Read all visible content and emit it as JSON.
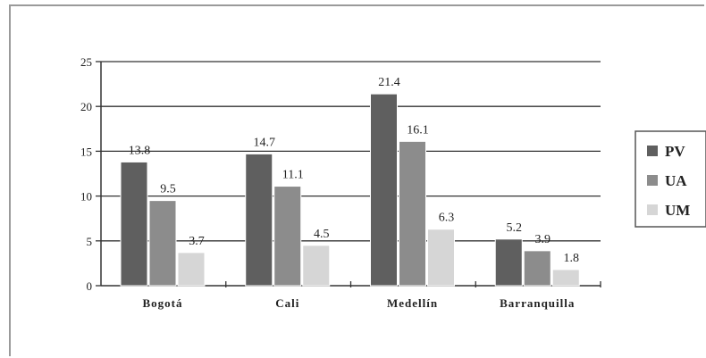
{
  "chart_data": {
    "type": "bar",
    "categories": [
      "Bogotá",
      "Cali",
      "Medellín",
      "Barranquilla"
    ],
    "series": [
      {
        "name": "PV",
        "values": [
          13.8,
          14.7,
          21.4,
          5.2
        ],
        "color": "#5f5f5f"
      },
      {
        "name": "UA",
        "values": [
          9.5,
          11.1,
          16.1,
          3.9
        ],
        "color": "#8c8c8c"
      },
      {
        "name": "UM",
        "values": [
          3.7,
          4.5,
          6.3,
          1.8
        ],
        "color": "#d6d6d6"
      }
    ],
    "y_ticks": [
      "0",
      "5",
      "10",
      "15",
      "20",
      "25"
    ],
    "ylim": [
      0,
      25
    ],
    "grid": true,
    "legend": "right"
  }
}
